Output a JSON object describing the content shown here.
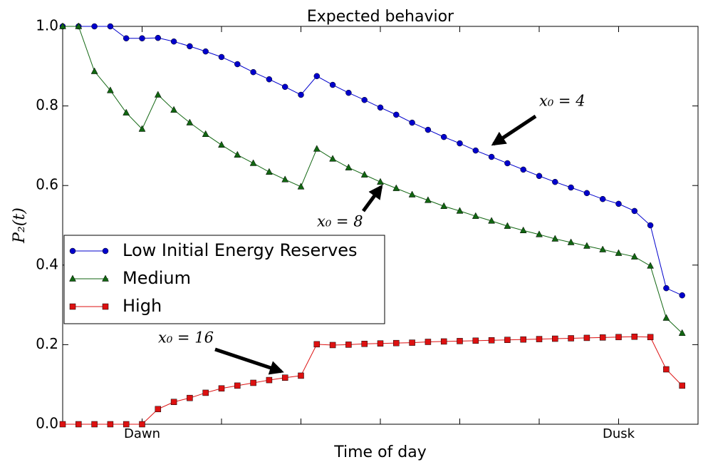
{
  "chart_data": {
    "type": "line",
    "title": "Expected behavior",
    "xlabel": "Time of day",
    "ylabel": "P₂(t)",
    "x": [
      0,
      1,
      2,
      3,
      4,
      5,
      6,
      7,
      8,
      9,
      10,
      11,
      12,
      13,
      14,
      15,
      16,
      17,
      18,
      19,
      20,
      21,
      22,
      23,
      24,
      25,
      26,
      27,
      28,
      29,
      30,
      31,
      32,
      33,
      34,
      35,
      36,
      37,
      38,
      39
    ],
    "series": [
      {
        "name": "Low Initial Energy Reserves",
        "color": "#0000cc",
        "marker": "circle",
        "values": [
          1.0,
          1.0,
          1.0,
          1.0,
          0.97,
          0.97,
          0.971,
          0.962,
          0.95,
          0.937,
          0.923,
          0.905,
          0.885,
          0.867,
          0.848,
          0.828,
          0.875,
          0.853,
          0.833,
          0.815,
          0.796,
          0.778,
          0.758,
          0.74,
          0.722,
          0.706,
          0.688,
          0.672,
          0.656,
          0.64,
          0.624,
          0.609,
          0.595,
          0.581,
          0.566,
          0.554,
          0.536,
          0.5,
          0.342,
          0.324
        ]
      },
      {
        "name": "Medium",
        "color": "#116611",
        "marker": "triangle",
        "values": [
          1.0,
          1.0,
          0.887,
          0.839,
          0.783,
          0.742,
          0.828,
          0.79,
          0.758,
          0.729,
          0.702,
          0.677,
          0.656,
          0.634,
          0.615,
          0.597,
          0.692,
          0.667,
          0.645,
          0.627,
          0.609,
          0.593,
          0.577,
          0.563,
          0.548,
          0.536,
          0.523,
          0.511,
          0.498,
          0.487,
          0.477,
          0.466,
          0.457,
          0.448,
          0.439,
          0.43,
          0.421,
          0.398,
          0.267,
          0.229
        ]
      },
      {
        "name": "High",
        "color": "#dd1111",
        "marker": "square",
        "values": [
          0,
          0,
          0,
          0,
          0,
          0,
          0.038,
          0.056,
          0.066,
          0.079,
          0.09,
          0.097,
          0.104,
          0.111,
          0.117,
          0.122,
          0.201,
          0.199,
          0.2,
          0.202,
          0.203,
          0.204,
          0.205,
          0.207,
          0.208,
          0.209,
          0.21,
          0.211,
          0.212,
          0.213,
          0.214,
          0.215,
          0.216,
          0.217,
          0.218,
          0.219,
          0.22,
          0.219,
          0.138,
          0.097
        ]
      }
    ],
    "xlim": [
      0,
      40
    ],
    "xticks": [
      {
        "value": 5,
        "label": "Dawn"
      },
      {
        "value": 35,
        "label": "Dusk"
      }
    ],
    "xminorticks": [
      10,
      15,
      20,
      25,
      30
    ],
    "ylim": [
      0,
      1
    ],
    "yticks": [
      {
        "value": 0,
        "label": "0.0"
      },
      0.2,
      0.4,
      0.6,
      0.8,
      {
        "value": 1,
        "label": "1.0"
      }
    ],
    "legend": "center left",
    "annotations": [
      {
        "text": "x₀ = 4"
      },
      {
        "text": "x₀ = 8"
      },
      {
        "text": "x₀ = 16"
      }
    ]
  }
}
